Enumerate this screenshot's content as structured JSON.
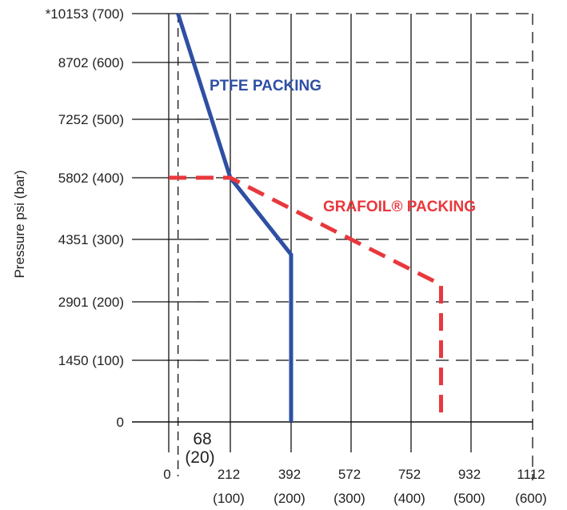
{
  "chart_data": {
    "type": "line",
    "title": "",
    "xlabel": "",
    "ylabel": "Pressure psi (bar)",
    "xlim": [
      0,
      1112
    ],
    "ylim": [
      0,
      10153
    ],
    "x_ticks": [
      {
        "value": 0,
        "label": "0",
        "sub": ""
      },
      {
        "value": 212,
        "label": "212",
        "sub": "(100)"
      },
      {
        "value": 392,
        "label": "392",
        "sub": "(200)"
      },
      {
        "value": 572,
        "label": "572",
        "sub": "(300)"
      },
      {
        "value": 752,
        "label": "752",
        "sub": "(400)"
      },
      {
        "value": 932,
        "label": "932",
        "sub": "(500)"
      },
      {
        "value": 1112,
        "label": "1112",
        "sub": "(600)"
      }
    ],
    "y_ticks": [
      {
        "value": 0,
        "label": "0"
      },
      {
        "value": 1450,
        "label": "1450 (100)"
      },
      {
        "value": 2901,
        "label": "2901 (200)"
      },
      {
        "value": 4351,
        "label": "4351 (300)"
      },
      {
        "value": 5802,
        "label": "5802 (400)"
      },
      {
        "value": 7252,
        "label": "7252 (500)"
      },
      {
        "value": 8702,
        "label": "8702 (600)"
      },
      {
        "value": 10153,
        "label": "*10153 (700)"
      }
    ],
    "series": [
      {
        "name": "PTFE PACKING",
        "color": "#2e4fa3",
        "style": "solid",
        "x": [
          32,
          212,
          392,
          392
        ],
        "y": [
          10153,
          5802,
          4000,
          0
        ]
      },
      {
        "name": "GRAFOIL® PACKING",
        "color": "#e8383d",
        "style": "dashed",
        "x": [
          0,
          212,
          572,
          842,
          842
        ],
        "y": [
          5802,
          5802,
          4351,
          3300,
          0
        ]
      }
    ],
    "annotations": [
      {
        "text": "68",
        "x": 68
      },
      {
        "text": "(20)",
        "x": 68
      }
    ]
  }
}
